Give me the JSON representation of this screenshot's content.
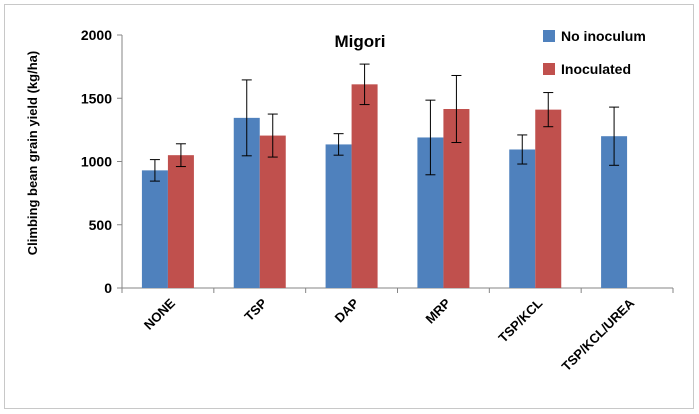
{
  "chart_data": {
    "type": "bar",
    "title": "Migori",
    "xlabel": "",
    "ylabel": "Climbing bean grain yield (kg/ha)",
    "ylim": [
      0,
      2000
    ],
    "yticks": [
      0,
      500,
      1000,
      1500,
      2000
    ],
    "grid": false,
    "legend_position": "top-right",
    "categories": [
      "NONE",
      "TSP",
      "DAP",
      "MRP",
      "TSP/KCL",
      "TSP/KCL/UREA"
    ],
    "series": [
      {
        "name": "No inoculum",
        "color": "#4f81bd",
        "values": [
          930,
          1345,
          1135,
          1190,
          1095,
          1200
        ],
        "error": [
          85,
          300,
          85,
          295,
          115,
          230
        ]
      },
      {
        "name": "Inoculated",
        "color": "#c0504d",
        "values": [
          1050,
          1205,
          1610,
          1415,
          1410,
          null
        ],
        "error": [
          90,
          170,
          160,
          265,
          135,
          null
        ]
      }
    ]
  }
}
